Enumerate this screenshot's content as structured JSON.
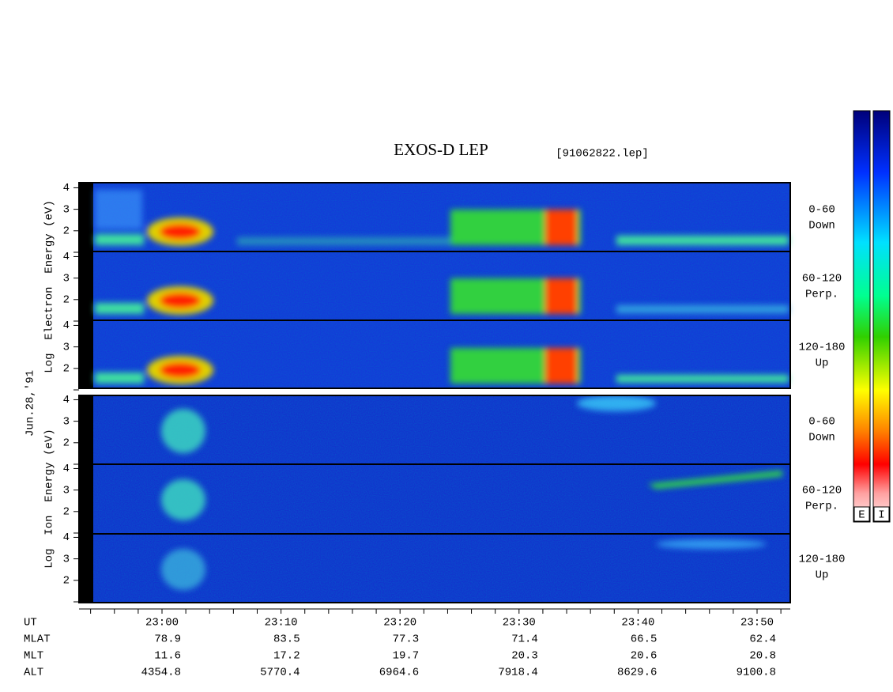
{
  "title": "EXOS-D LEP",
  "file": "[91062822.lep]",
  "date_label": "Jun.28,'91",
  "panel_groups": [
    {
      "ylabel": "Log  Electron  Energy (eV)",
      "panels": [
        {
          "label": "0-60",
          "direction": "Down"
        },
        {
          "label": "60-120",
          "direction": "Perp."
        },
        {
          "label": "120-180",
          "direction": "Up"
        }
      ]
    },
    {
      "ylabel": "Log  Ion  Energy (eV)",
      "panels": [
        {
          "label": "0-60",
          "direction": "Down"
        },
        {
          "label": "60-120",
          "direction": "Perp."
        },
        {
          "label": "120-180",
          "direction": "Up"
        }
      ]
    }
  ],
  "ylim": [
    1,
    4.2
  ],
  "yticks": [
    {
      "value": 1,
      "label": ""
    },
    2,
    3,
    4
  ],
  "orbit": {
    "row_labels": [
      "UT",
      "MLAT",
      "MLT",
      "ALT"
    ],
    "times": [
      "23:00",
      "23:10",
      "23:20",
      "23:30",
      "23:40",
      "23:50"
    ],
    "rows": [
      [
        "78.9",
        "83.5",
        "77.3",
        "71.4",
        "66.5",
        "62.4"
      ],
      [
        "11.6",
        "17.2",
        "19.7",
        "20.3",
        "20.6",
        "20.8"
      ],
      [
        "4354.8",
        "5770.4",
        "6964.6",
        "7918.4",
        "8629.6",
        "9100.8"
      ]
    ]
  },
  "colorbars": [
    "E",
    "I"
  ]
}
